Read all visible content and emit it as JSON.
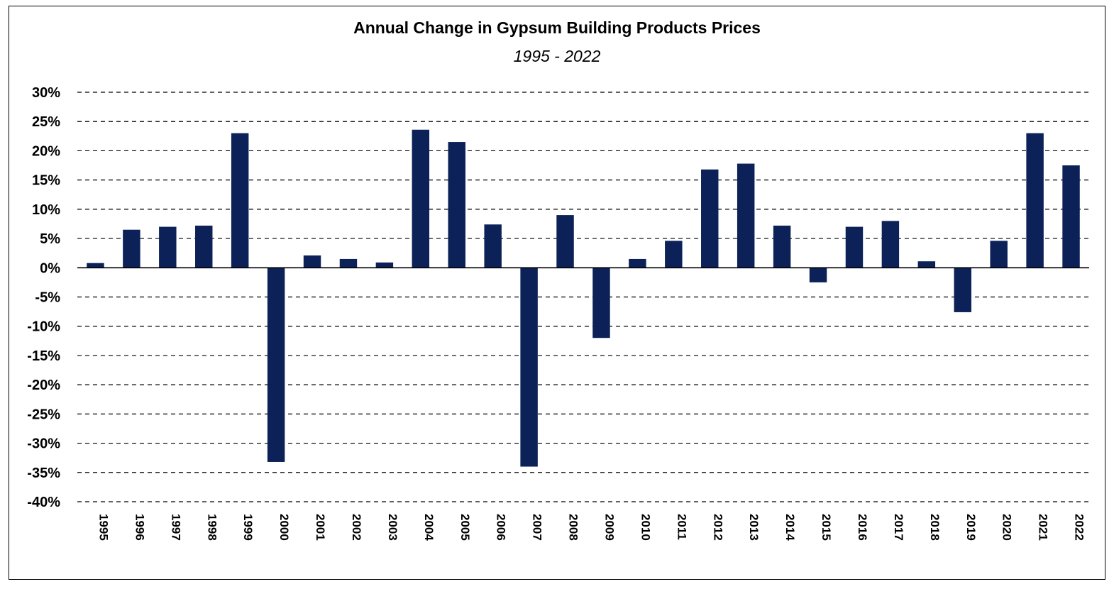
{
  "chart_data": {
    "type": "bar",
    "title": "Annual Change in Gypsum Building Products Prices",
    "subtitle": "1995 - 2022",
    "xlabel": "",
    "ylabel": "",
    "ylim": [
      -40,
      30
    ],
    "y_ticks": [
      "30%",
      "25%",
      "20%",
      "15%",
      "10%",
      "5%",
      "0%",
      "-5%",
      "-10%",
      "-15%",
      "-20%",
      "-25%",
      "-30%",
      "-35%",
      "-40%"
    ],
    "y_tick_values": [
      30,
      25,
      20,
      15,
      10,
      5,
      0,
      -5,
      -10,
      -15,
      -20,
      -25,
      -30,
      -35,
      -40
    ],
    "grid": "horizontal dashed",
    "legend": "none",
    "bar_color": "#0b2157",
    "categories": [
      "1995",
      "1996",
      "1997",
      "1998",
      "1999",
      "2000",
      "2001",
      "2002",
      "2003",
      "2004",
      "2005",
      "2006",
      "2007",
      "2008",
      "2009",
      "2010",
      "2011",
      "2012",
      "2013",
      "2014",
      "2015",
      "2016",
      "2017",
      "2018",
      "2019",
      "2020",
      "2021",
      "2022"
    ],
    "values": [
      0.8,
      6.5,
      7.0,
      7.2,
      23.0,
      -33.2,
      2.1,
      1.5,
      0.9,
      23.6,
      21.5,
      7.4,
      -34.0,
      9.0,
      -12.0,
      1.5,
      4.6,
      16.8,
      17.8,
      7.2,
      -2.5,
      7.0,
      8.0,
      1.1,
      -7.6,
      4.6,
      23.0,
      17.5
    ]
  }
}
